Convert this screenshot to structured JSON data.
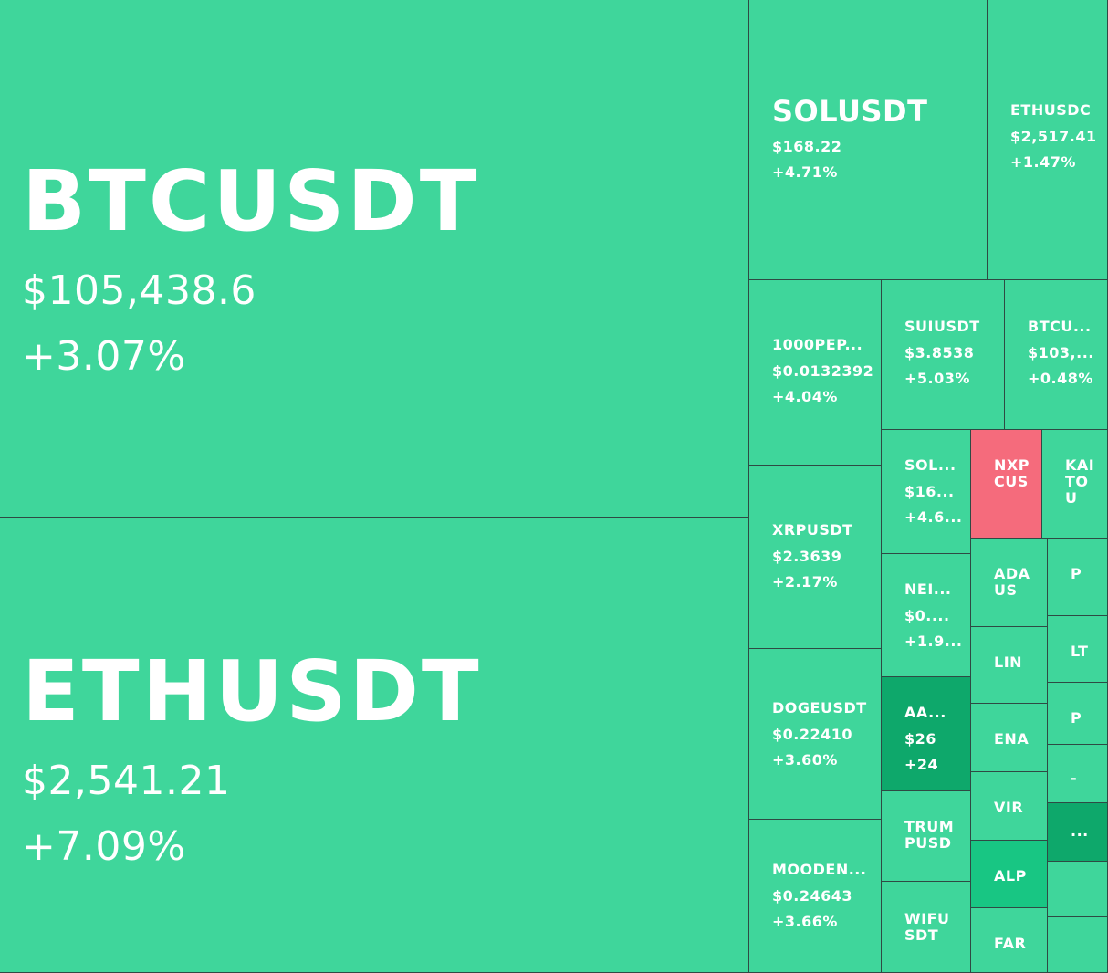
{
  "colors": {
    "green": "#3fd69b",
    "dark_green": "#0ea86b",
    "mid_green": "#18c683",
    "red": "#f56b7c",
    "text": "#ffffff",
    "border": "#2f4a44"
  },
  "chart_data": {
    "type": "treemap",
    "title": "",
    "tiles": [
      {
        "symbol": "BTCUSDT",
        "price": "$105,438.6",
        "change": "+3.07%",
        "change_pct": 3.07
      },
      {
        "symbol": "ETHUSDT",
        "price": "$2,541.21",
        "change": "+7.09%",
        "change_pct": 7.09
      },
      {
        "symbol": "SOLUSDT",
        "price": "$168.22",
        "change": "+4.71%",
        "change_pct": 4.71
      },
      {
        "symbol": "ETHUSDC",
        "price": "$2,517.41",
        "change": "+1.47%",
        "change_pct": 1.47
      },
      {
        "symbol": "1000PEP...",
        "price": "$0.0132392",
        "change": "+4.04%",
        "change_pct": 4.04
      },
      {
        "symbol": "SUIUSDT",
        "price": "$3.8538",
        "change": "+5.03%",
        "change_pct": 5.03
      },
      {
        "symbol": "BTCU...",
        "price": "$103,...",
        "change": "+0.48%",
        "change_pct": 0.48
      },
      {
        "symbol": "XRPUSDT",
        "price": "$2.3639",
        "change": "+2.17%",
        "change_pct": 2.17
      },
      {
        "symbol": "SOL...",
        "price": "$16...",
        "change": "+4.6...",
        "change_pct": null
      },
      {
        "symbol": "NXPCUS",
        "price": "",
        "change": "",
        "change_pct": null
      },
      {
        "symbol": "KAITOU",
        "price": "",
        "change": "",
        "change_pct": null
      },
      {
        "symbol": "NEI...",
        "price": "$0....",
        "change": "+1.9...",
        "change_pct": null
      },
      {
        "symbol": "ADAUS",
        "price": "",
        "change": "",
        "change_pct": null
      },
      {
        "symbol": "P",
        "price": "",
        "change": "",
        "change_pct": null
      },
      {
        "symbol": "DOGEUSDT",
        "price": "$0.22410",
        "change": "+3.60%",
        "change_pct": 3.6
      },
      {
        "symbol": "AA...",
        "price": "$26",
        "change": "+24",
        "change_pct": null
      },
      {
        "symbol": "LIN",
        "price": "",
        "change": "",
        "change_pct": null
      },
      {
        "symbol": "LT",
        "price": "",
        "change": "",
        "change_pct": null
      },
      {
        "symbol": "ENA",
        "price": "",
        "change": "",
        "change_pct": null
      },
      {
        "symbol": "P",
        "price": "",
        "change": "",
        "change_pct": null
      },
      {
        "symbol": "-",
        "price": "",
        "change": "",
        "change_pct": null
      },
      {
        "symbol": "VIR",
        "price": "",
        "change": "",
        "change_pct": null
      },
      {
        "symbol": "...",
        "price": "",
        "change": "",
        "change_pct": null
      },
      {
        "symbol": "TRUMPUSD",
        "price": "",
        "change": "",
        "change_pct": null
      },
      {
        "symbol": "MOODEN...",
        "price": "$0.24643",
        "change": "+3.66%",
        "change_pct": 3.66
      },
      {
        "symbol": "ALP",
        "price": "",
        "change": "",
        "change_pct": null
      },
      {
        "symbol": "WIFUSDT",
        "price": "",
        "change": "",
        "change_pct": null
      },
      {
        "symbol": "FAR",
        "price": "",
        "change": "",
        "change_pct": null
      },
      {
        "symbol": "",
        "price": "",
        "change": "",
        "change_pct": null
      },
      {
        "symbol": "",
        "price": "",
        "change": "",
        "change_pct": null
      }
    ]
  }
}
